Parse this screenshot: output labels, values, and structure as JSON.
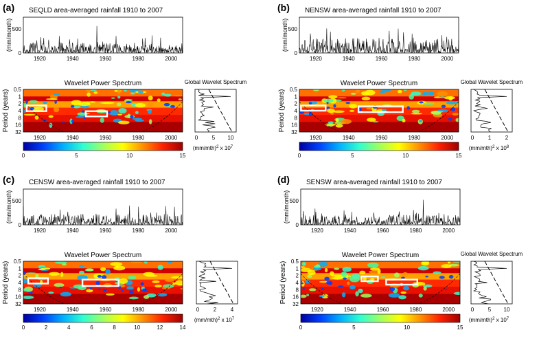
{
  "figure": {
    "colormap_stops": [
      "#0000a0",
      "#0040ff",
      "#00b0ff",
      "#30ffd0",
      "#a0ff60",
      "#ffff00",
      "#ff9000",
      "#ff2000",
      "#a00000"
    ]
  },
  "panels": [
    {
      "letter": "(a)",
      "ts_title": "SEQLD area-averaged rainfall 1910 to 2007",
      "ts_ylabel": "(mm/month)",
      "ts_yticks": [
        "0",
        "500"
      ],
      "ts_xticks": [
        "1920",
        "1940",
        "1960",
        "1980",
        "2000"
      ],
      "ts_peak": 560,
      "ts_typical": 120,
      "wps_title": "Wavelet Power Spectrum",
      "wps_ylabel": "Period (years)",
      "wps_yticks": [
        "0.5",
        "1",
        "2",
        "4",
        "8",
        "16",
        "32"
      ],
      "wps_xticks": [
        "1920",
        "1940",
        "1960",
        "1980",
        "2000"
      ],
      "gws_title": "Global Wavelet Spectrum",
      "gws_xticks": [
        "0",
        "5",
        "10"
      ],
      "gws_xlabel_base": "(mm/mth)",
      "gws_xlabel_sup": "2",
      "gws_xlabel_scale": " x 10",
      "gws_xlabel_exp": "7",
      "cbar_ticks": [
        "0",
        "5",
        "10",
        "15"
      ],
      "boxes": [
        {
          "y0": 1912,
          "y1": 1924,
          "p0": 2.4,
          "p1": 4.2
        },
        {
          "y0": 1948,
          "y1": 1961,
          "p0": 4.2,
          "p1": 7.0
        }
      ]
    },
    {
      "letter": "(b)",
      "ts_title": "NENSW area-averaged rainfall 1910 to 2007",
      "ts_ylabel": "(mm/month)",
      "ts_yticks": [
        "0",
        "500"
      ],
      "ts_xticks": [
        "1920",
        "1940",
        "1960",
        "1980",
        "2000"
      ],
      "ts_peak": 460,
      "ts_typical": 170,
      "wps_title": "Wavelet Power Spectrum",
      "wps_ylabel": "Period (years)",
      "wps_yticks": [
        "0.5",
        "1",
        "2",
        "4",
        "8",
        "16",
        "32"
      ],
      "wps_xticks": [
        "1920",
        "1940",
        "1960",
        "1980",
        "2000"
      ],
      "gws_title": "Global Wavelet Spectrum",
      "gws_xticks": [
        "0",
        "1",
        "2"
      ],
      "gws_xlabel_base": "(mm/mth)",
      "gws_xlabel_sup": "2",
      "gws_xlabel_scale": " x 10",
      "gws_xlabel_exp": "8",
      "cbar_ticks": [
        "0",
        "5",
        "10",
        "15"
      ],
      "boxes": [
        {
          "y0": 1911,
          "y1": 1926,
          "p0": 2.4,
          "p1": 4.0
        },
        {
          "y0": 1946,
          "y1": 1973,
          "p0": 2.6,
          "p1": 4.6
        }
      ]
    },
    {
      "letter": "(c)",
      "ts_title": "CENSW area-averaged rainfall  1910 to 2007",
      "ts_ylabel": "(mm/month)",
      "ts_yticks": [
        "0",
        "500"
      ],
      "ts_xticks": [
        "1920",
        "1940",
        "1960",
        "1980",
        "2000"
      ],
      "ts_peak": 400,
      "ts_typical": 130,
      "wps_title": "Wavelet Power Spectrum",
      "wps_ylabel": "Period (years)",
      "wps_yticks": [
        "0.5",
        "1",
        "2",
        "4",
        "8",
        "16",
        "32"
      ],
      "wps_xticks": [
        "1920",
        "1940",
        "1960",
        "1980",
        "2000"
      ],
      "gws_title": "",
      "gws_xticks": [
        "0",
        "2",
        "4"
      ],
      "gws_xlabel_base": "(mm/mth)",
      "gws_xlabel_sup": "2",
      "gws_xlabel_scale": " x 10",
      "gws_xlabel_exp": "7",
      "cbar_ticks": [
        "0",
        "2",
        "4",
        "6",
        "8",
        "10",
        "12",
        "14"
      ],
      "boxes": [
        {
          "y0": 1913,
          "y1": 1925,
          "p0": 2.6,
          "p1": 4.4
        },
        {
          "y0": 1946,
          "y1": 1968,
          "p0": 3.0,
          "p1": 5.6
        }
      ]
    },
    {
      "letter": "(d)",
      "ts_title": "SENSW area-averaged rainfall 1910 to 2007",
      "ts_ylabel": "(mm/month)",
      "ts_yticks": [
        "0",
        "500"
      ],
      "ts_xticks": [
        "1920",
        "1940",
        "1960",
        "1980",
        "2000"
      ],
      "ts_peak": 520,
      "ts_typical": 110,
      "wps_title": "Wavelet Power Spectrum",
      "wps_ylabel": "Period (years)",
      "wps_yticks": [
        "0.5",
        "1",
        "2",
        "4",
        "8",
        "16",
        "32"
      ],
      "wps_xticks": [
        "1920",
        "1940",
        "1960",
        "1980",
        "2000"
      ],
      "gws_title": "Global Wavelet Spectrum",
      "gws_xticks": [
        "0",
        "5",
        "10"
      ],
      "gws_xlabel_base": "(mm/mth)",
      "gws_xlabel_sup": "2",
      "gws_xlabel_scale": " x 10",
      "gws_xlabel_exp": "7",
      "cbar_ticks": [
        "0",
        "5",
        "10",
        "15"
      ],
      "boxes": [
        {
          "y0": 1947,
          "y1": 1957,
          "p0": 2.2,
          "p1": 3.5
        },
        {
          "y0": 1962,
          "y1": 1981,
          "p0": 3.0,
          "p1": 4.9
        }
      ]
    }
  ],
  "chart_data": [
    {
      "type": "line",
      "title": "SEQLD area-averaged rainfall 1910 to 2007",
      "ylabel": "(mm/month)",
      "xlim": [
        1910,
        2007
      ],
      "ylim": [
        0,
        700
      ],
      "peak_value": 560,
      "peak_year": 1974
    },
    {
      "type": "heatmap",
      "title": "Wavelet Power Spectrum",
      "ylabel": "Period (years)",
      "y_scale": "log2",
      "yticks": [
        0.5,
        1,
        2,
        4,
        8,
        16,
        32
      ],
      "xlim": [
        1910,
        2007
      ],
      "colorbar_range": [
        0,
        15
      ]
    },
    {
      "type": "line",
      "title": "Global Wavelet Spectrum",
      "x_scale_exp": 7,
      "xlim": [
        0,
        10
      ]
    },
    {
      "type": "line",
      "title": "NENSW area-averaged rainfall 1910 to 2007",
      "ylabel": "(mm/month)",
      "xlim": [
        1910,
        2007
      ],
      "ylim": [
        0,
        700
      ],
      "peak_value": 460
    },
    {
      "type": "heatmap",
      "title": "Wavelet Power Spectrum",
      "ylabel": "Period (years)",
      "y_scale": "log2",
      "yticks": [
        0.5,
        1,
        2,
        4,
        8,
        16,
        32
      ],
      "xlim": [
        1910,
        2007
      ],
      "colorbar_range": [
        0,
        15
      ]
    },
    {
      "type": "line",
      "title": "Global Wavelet Spectrum",
      "x_scale_exp": 8,
      "xlim": [
        0,
        2
      ]
    },
    {
      "type": "line",
      "title": "CENSW area-averaged rainfall  1910 to 2007",
      "ylabel": "(mm/month)",
      "xlim": [
        1910,
        2007
      ],
      "ylim": [
        0,
        700
      ],
      "peak_value": 400
    },
    {
      "type": "heatmap",
      "title": "Wavelet Power Spectrum",
      "ylabel": "Period (years)",
      "y_scale": "log2",
      "yticks": [
        0.5,
        1,
        2,
        4,
        8,
        16,
        32
      ],
      "xlim": [
        1910,
        2007
      ],
      "colorbar_range": [
        0,
        14
      ]
    },
    {
      "type": "line",
      "x_scale_exp": 7,
      "xlim": [
        0,
        4
      ]
    },
    {
      "type": "line",
      "title": "SENSW area-averaged rainfall 1910 to 2007",
      "ylabel": "(mm/month)",
      "xlim": [
        1910,
        2007
      ],
      "ylim": [
        0,
        700
      ],
      "peak_value": 520
    },
    {
      "type": "heatmap",
      "title": "Wavelet Power Spectrum",
      "ylabel": "Period (years)",
      "y_scale": "log2",
      "yticks": [
        0.5,
        1,
        2,
        4,
        8,
        16,
        32
      ],
      "xlim": [
        1910,
        2007
      ],
      "colorbar_range": [
        0,
        15
      ]
    },
    {
      "type": "line",
      "title": "Global Wavelet Spectrum",
      "x_scale_exp": 7,
      "xlim": [
        0,
        10
      ]
    }
  ]
}
